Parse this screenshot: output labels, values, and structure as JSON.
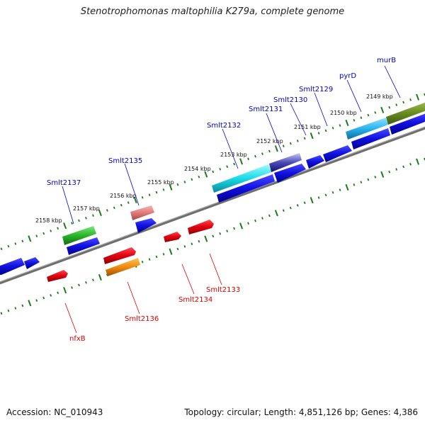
{
  "title": "Stenotrophomonas maltophilia K279a, complete genome",
  "footer": {
    "accession": "Accession: NC_010943",
    "summary": "Topology: circular; Length: 4,851,126 bp; Genes: 4,386"
  },
  "ticks": [
    {
      "label": "2149 kbp"
    },
    {
      "label": "2150 kbp"
    },
    {
      "label": "2151 kbp"
    },
    {
      "label": "2152 kbp"
    },
    {
      "label": "2153 kbp"
    },
    {
      "label": "2154 kbp"
    },
    {
      "label": "2155 kbp"
    },
    {
      "label": "2156 kbp"
    },
    {
      "label": "2157 kbp"
    },
    {
      "label": "2158 kbp"
    }
  ],
  "genes": [
    {
      "name": "murB",
      "color": "#0000cc"
    },
    {
      "name": "pyrD",
      "color": "#0000cc"
    },
    {
      "name": "Smlt2129",
      "color": "#0000cc"
    },
    {
      "name": "Smlt2130",
      "color": "#0000cc"
    },
    {
      "name": "Smlt2131",
      "color": "#0000cc"
    },
    {
      "name": "Smlt2132",
      "color": "#0000cc"
    },
    {
      "name": "Smlt2135",
      "color": "#0000cc"
    },
    {
      "name": "Smlt2137",
      "color": "#0000cc"
    },
    {
      "name": "Smlt2133",
      "color": "#dd0000"
    },
    {
      "name": "Smlt2134",
      "color": "#dd0000"
    },
    {
      "name": "Smlt2136",
      "color": "#dd0000"
    },
    {
      "name": "nfxB",
      "color": "#dd0000"
    }
  ],
  "colors": {
    "forward_strand": "#1010e0",
    "reverse_strand": "#e00010",
    "tick_green": "#1a7a1a",
    "backbone": "#888888"
  }
}
